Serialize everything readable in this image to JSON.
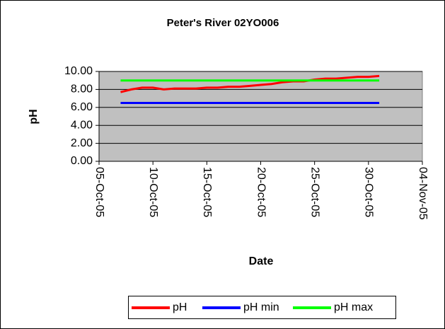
{
  "chart_data": {
    "type": "line",
    "title": "Peter's River 02YO006",
    "x_label": "Date",
    "y_label": "pH",
    "x": [
      "2005-10-07",
      "2005-10-08",
      "2005-10-09",
      "2005-10-10",
      "2005-10-11",
      "2005-10-12",
      "2005-10-13",
      "2005-10-14",
      "2005-10-15",
      "2005-10-16",
      "2005-10-17",
      "2005-10-18",
      "2005-10-19",
      "2005-10-20",
      "2005-10-21",
      "2005-10-22",
      "2005-10-23",
      "2005-10-24",
      "2005-10-25",
      "2005-10-26",
      "2005-10-27",
      "2005-10-28",
      "2005-10-29",
      "2005-10-30",
      "2005-10-31"
    ],
    "series": [
      {
        "name": "pH",
        "color": "#ff0000",
        "values": [
          7.7,
          8.0,
          8.2,
          8.2,
          8.0,
          8.1,
          8.1,
          8.1,
          8.2,
          8.2,
          8.3,
          8.3,
          8.4,
          8.5,
          8.6,
          8.8,
          8.9,
          8.9,
          9.1,
          9.2,
          9.2,
          9.3,
          9.4,
          9.4,
          9.5
        ]
      },
      {
        "name": "pH min",
        "color": "#0000ff",
        "values": [
          6.5,
          6.5,
          6.5,
          6.5,
          6.5,
          6.5,
          6.5,
          6.5,
          6.5,
          6.5,
          6.5,
          6.5,
          6.5,
          6.5,
          6.5,
          6.5,
          6.5,
          6.5,
          6.5,
          6.5,
          6.5,
          6.5,
          6.5,
          6.5,
          6.5
        ]
      },
      {
        "name": "pH max",
        "color": "#00ff00",
        "values": [
          9.0,
          9.0,
          9.0,
          9.0,
          9.0,
          9.0,
          9.0,
          9.0,
          9.0,
          9.0,
          9.0,
          9.0,
          9.0,
          9.0,
          9.0,
          9.0,
          9.0,
          9.0,
          9.0,
          9.0,
          9.0,
          9.0,
          9.0,
          9.0,
          9.0
        ]
      }
    ],
    "xlim": [
      "2005-10-05",
      "2005-11-04"
    ],
    "xticks": [
      {
        "value": "2005-10-05",
        "label": "05-Oct-05"
      },
      {
        "value": "2005-10-10",
        "label": "10-Oct-05"
      },
      {
        "value": "2005-10-15",
        "label": "15-Oct-05"
      },
      {
        "value": "2005-10-20",
        "label": "20-Oct-05"
      },
      {
        "value": "2005-10-25",
        "label": "25-Oct-05"
      },
      {
        "value": "2005-10-30",
        "label": "30-Oct-05"
      },
      {
        "value": "2005-11-04",
        "label": "04-Nov-05"
      }
    ],
    "ylim": [
      0,
      10
    ],
    "yticks": [
      {
        "value": 0,
        "label": "0.00"
      },
      {
        "value": 2,
        "label": "2.00"
      },
      {
        "value": 4,
        "label": "4.00"
      },
      {
        "value": 6,
        "label": "6.00"
      },
      {
        "value": 8,
        "label": "8.00"
      },
      {
        "value": 10,
        "label": "10.00"
      }
    ],
    "grid": true,
    "plot_background": "#c0c0c0",
    "legend": "bottom"
  }
}
